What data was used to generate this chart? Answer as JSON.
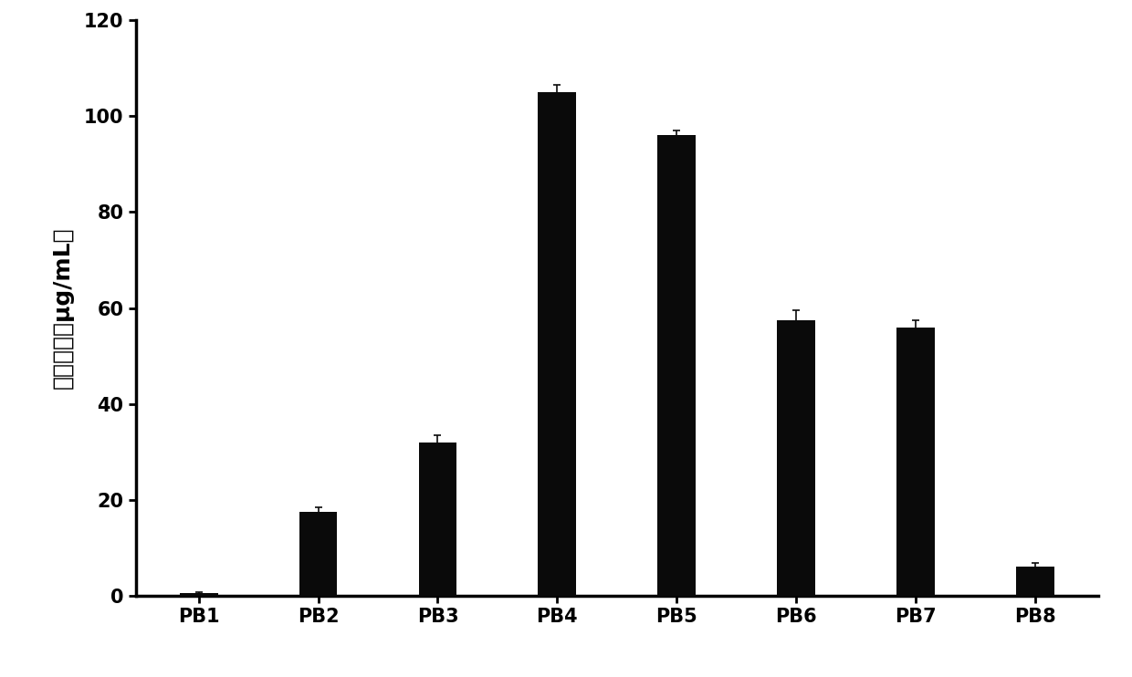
{
  "categories": [
    "PB1",
    "PB2",
    "PB3",
    "PB4",
    "PB5",
    "PB6",
    "PB7",
    "PB8"
  ],
  "values": [
    0.5,
    17.5,
    32.0,
    105.0,
    96.0,
    57.5,
    56.0,
    6.0
  ],
  "errors": [
    0.3,
    1.0,
    1.5,
    1.5,
    1.0,
    2.0,
    1.5,
    0.8
  ],
  "bar_color": "#0a0a0a",
  "ylabel": "多肽含量（μg/mL）",
  "ylim": [
    0,
    120
  ],
  "yticks": [
    0,
    20,
    40,
    60,
    80,
    100,
    120
  ],
  "background_color": "#ffffff",
  "bar_width": 0.32,
  "ylabel_fontsize": 18,
  "tick_fontsize": 15,
  "xlabel_fontsize": 15
}
